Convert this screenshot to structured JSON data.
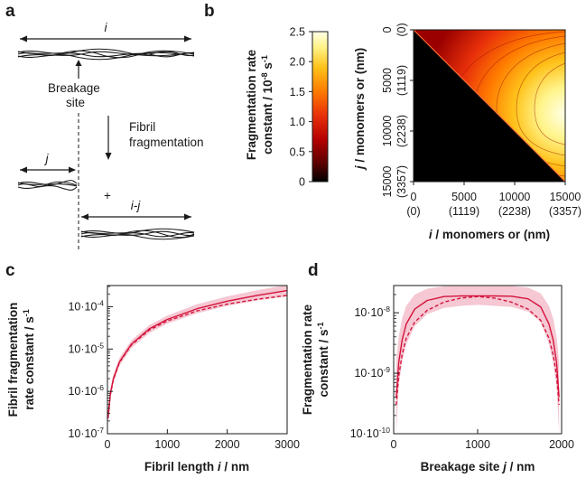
{
  "panels": {
    "a": {
      "letter": "a",
      "fibril_label": "i",
      "breakage_label_1": "Breakage",
      "breakage_label_2": "site",
      "process_label_1": "Fibril",
      "process_label_2": "fragmentation",
      "left_fragment_label": "j",
      "plus_sign": "+",
      "right_fragment_label": "i-j"
    },
    "b": {
      "letter": "b"
    },
    "c": {
      "letter": "c"
    },
    "d": {
      "letter": "d"
    }
  },
  "chart_data": [
    {
      "panel": "b",
      "type": "heatmap",
      "colorbar": {
        "label_line1": "Fragmentation rate",
        "label_line2": "constant / 10",
        "label_exp": "-8",
        "label_unit": " s",
        "label_unit_exp": "-1",
        "ticks": [
          "0",
          "0.5",
          "1.0",
          "1.5",
          "2.0",
          "2.5"
        ],
        "range": [
          0,
          2.5
        ],
        "colors": [
          "#000000",
          "#5a0000",
          "#b40000",
          "#e8300a",
          "#ff7a00",
          "#ffc21a",
          "#fff48a",
          "#ffffe8"
        ]
      },
      "x_axis": {
        "label_var": "i",
        "label_rest": " / monomers or (nm)",
        "ticks": [
          0,
          5000,
          10000,
          15000
        ],
        "tick_labels": [
          "0",
          "5000",
          "10000",
          "15000"
        ],
        "tick_sub_labels": [
          "(0)",
          "(1119)",
          "(2238)",
          "(3357)"
        ],
        "range": [
          0,
          15000
        ]
      },
      "y_axis": {
        "label_var": "j",
        "label_rest": " / monomers or (nm)",
        "ticks": [
          0,
          5000,
          10000,
          15000
        ],
        "tick_labels": [
          "0",
          "5000",
          "10000",
          "15000"
        ],
        "tick_sub_labels": [
          "(0)",
          "(1119)",
          "(2238)",
          "(3357)"
        ],
        "range": [
          0,
          15000
        ]
      },
      "region": "j < i",
      "peak_value": 2.5
    },
    {
      "panel": "c",
      "type": "line",
      "xlabel_pre": "Fibril length ",
      "xlabel_var": "i",
      "xlabel_post": " / nm",
      "ylabel_line1": "Fibril fragmentation",
      "ylabel_line2": "rate constant / s",
      "ylabel_exp": "-1",
      "xlim": [
        0,
        3000
      ],
      "ylim_log10": [
        -7,
        -3.5
      ],
      "xticks": [
        "0",
        "1000",
        "2000",
        "3000"
      ],
      "yticks": [
        {
          "base": "10·10",
          "exp": "-4",
          "log10": -4
        },
        {
          "base": "10·10",
          "exp": "-5",
          "log10": -5
        },
        {
          "base": "10·10",
          "exp": "-6",
          "log10": -6
        },
        {
          "base": "10·10",
          "exp": "-7",
          "log10": -7
        }
      ],
      "series": [
        {
          "style": "solid",
          "color": "#d4143c",
          "x": [
            10,
            50,
            100,
            200,
            400,
            700,
            1000,
            1500,
            2000,
            2500,
            3000
          ],
          "y": [
            2.5e-07,
            9e-07,
            2e-06,
            5e-06,
            1.3e-05,
            3e-05,
            5e-05,
            9e-05,
            0.000135,
            0.000185,
            0.00024
          ],
          "band_y_low": [
            1.8e-07,
            7e-07,
            1.6e-06,
            4e-06,
            1.05e-05,
            2.4e-05,
            4e-05,
            7e-05,
            0.000105,
            0.00014,
            0.000175
          ],
          "band_y_high": [
            3.3e-07,
            1.15e-06,
            2.5e-06,
            6.2e-06,
            1.6e-05,
            3.7e-05,
            6.2e-05,
            0.000115,
            0.000175,
            0.000245,
            0.00033
          ]
        },
        {
          "style": "dashed",
          "color": "#d4143c",
          "x": [
            10,
            50,
            100,
            200,
            400,
            700,
            1000,
            1500,
            2000,
            2500,
            3000
          ],
          "y": [
            2.3e-07,
            8.5e-07,
            1.9e-06,
            4.8e-06,
            1.25e-05,
            2.8e-05,
            4.6e-05,
            8e-05,
            0.000115,
            0.00015,
            0.000185
          ]
        }
      ]
    },
    {
      "panel": "d",
      "type": "line",
      "xlabel_pre": "Breakage site ",
      "xlabel_var": "j",
      "xlabel_post": " / nm",
      "ylabel_line1": "Fragmentation rate",
      "ylabel_line2": "constant / s",
      "ylabel_exp": "-1",
      "xlim": [
        0,
        2000
      ],
      "ylim_log10": [
        -10,
        -7.55
      ],
      "xticks": [
        "0",
        "1000",
        "2000"
      ],
      "yticks": [
        {
          "base": "10·10",
          "exp": "-8",
          "log10": -8
        },
        {
          "base": "10·10",
          "exp": "-9",
          "log10": -9
        },
        {
          "base": "10·10",
          "exp": "-10",
          "log10": -10
        }
      ],
      "series": [
        {
          "style": "solid",
          "color": "#d4143c",
          "x": [
            30,
            60,
            100,
            150,
            250,
            400,
            600,
            800,
            1000,
            1200,
            1400,
            1600,
            1750,
            1850,
            1900,
            1940,
            1970
          ],
          "y": [
            4e-10,
            1.5e-09,
            3.5e-09,
            6.5e-09,
            1.15e-08,
            1.6e-08,
            1.85e-08,
            1.9e-08,
            1.9e-08,
            1.9e-08,
            1.88e-08,
            1.7e-08,
            1.25e-08,
            6.5e-09,
            3.5e-09,
            1.5e-09,
            4e-10
          ],
          "band_y_low": [
            1e-10,
            6e-10,
            1.5e-09,
            3e-09,
            6e-09,
            9.5e-09,
            1.2e-08,
            1.3e-08,
            1.35e-08,
            1.3e-08,
            1.25e-08,
            1.05e-08,
            7e-09,
            3e-09,
            1.5e-09,
            6e-10,
            1e-10
          ],
          "band_y_high": [
            1.5e-09,
            4e-09,
            8e-09,
            1.3e-08,
            2e-08,
            2.5e-08,
            2.75e-08,
            2.8e-08,
            2.8e-08,
            2.8e-08,
            2.78e-08,
            2.6e-08,
            2.1e-08,
            1.3e-08,
            8e-09,
            4e-09,
            1.5e-09
          ]
        },
        {
          "style": "dashed",
          "color": "#d4143c",
          "x": [
            30,
            60,
            100,
            150,
            250,
            400,
            600,
            800,
            1000,
            1200,
            1400,
            1600,
            1750,
            1850,
            1900,
            1940,
            1970
          ],
          "y": [
            3e-10,
            9e-10,
            2e-09,
            3.8e-09,
            7e-09,
            1.1e-08,
            1.5e-08,
            1.75e-08,
            1.85e-08,
            1.75e-08,
            1.5e-08,
            1.15e-08,
            7.5e-09,
            3.8e-09,
            2e-09,
            9e-10,
            3e-10
          ]
        }
      ]
    }
  ]
}
